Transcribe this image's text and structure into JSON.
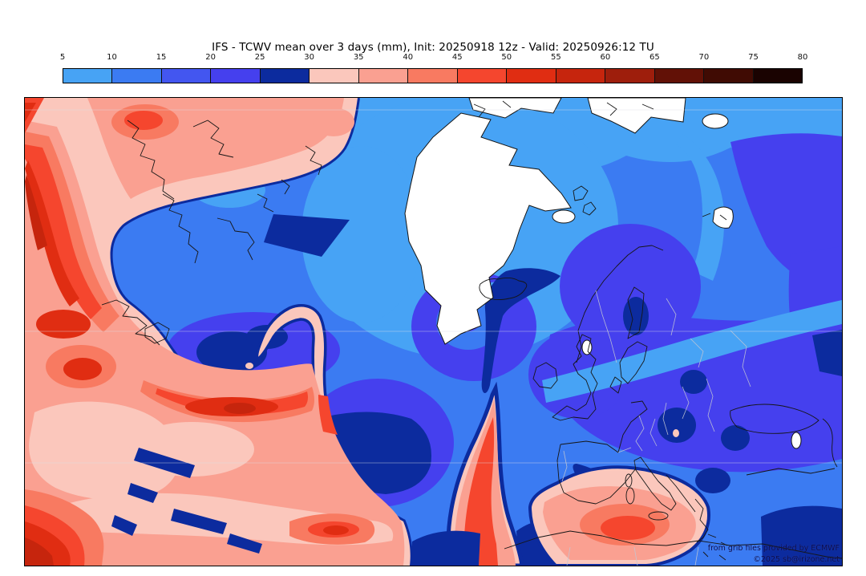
{
  "title": "IFS - TCWV mean over 3 days (mm), Init: 20250918 12z - Valid: 20250926:12 TU",
  "colorbar": {
    "unit": "mm",
    "ticks": [
      "5",
      "10",
      "15",
      "20",
      "25",
      "30",
      "35",
      "40",
      "45",
      "50",
      "55",
      "60",
      "65",
      "70",
      "75",
      "80"
    ],
    "colors": [
      "#47a3f5",
      "#3b7bf2",
      "#4356f0",
      "#4540ee",
      "#0c2b9e",
      "#fbc7bc",
      "#faa091",
      "#f87a61",
      "#f5462e",
      "#e02d12",
      "#c6250d",
      "#9e1e0c",
      "#621106",
      "#400b03",
      "#1a0301"
    ]
  },
  "attribution": {
    "line1": "from grib files provided by ECMWF",
    "line2": "©2025 sb@irizone.net"
  },
  "chart_data": {
    "type": "heatmap",
    "title": "IFS - TCWV mean over 3 days (mm), Init: 20250918 12z - Valid: 20250926:12 TU",
    "model": "IFS",
    "variable": "TCWV mean over 3 days",
    "unit": "mm",
    "init": "20250918 12z",
    "valid": "20250926:12 TU",
    "scale_ticks": [
      5,
      10,
      15,
      20,
      25,
      30,
      35,
      40,
      45,
      50,
      55,
      60,
      65,
      70,
      75,
      80
    ],
    "scale_colors": [
      "#47a3f5",
      "#3b7bf2",
      "#4356f0",
      "#4540ee",
      "#0c2b9e",
      "#fbc7bc",
      "#faa091",
      "#f87a61",
      "#f5462e",
      "#e02d12",
      "#c6250d",
      "#9e1e0c",
      "#621106",
      "#400b03",
      "#1a0301"
    ],
    "legend_position": "top",
    "notes": "Filled-contour map: high TCWV (reds) over western Atlantic and central Mediterranean; low TCWV (blues/white) over Greenland, Arctic and Europe"
  }
}
